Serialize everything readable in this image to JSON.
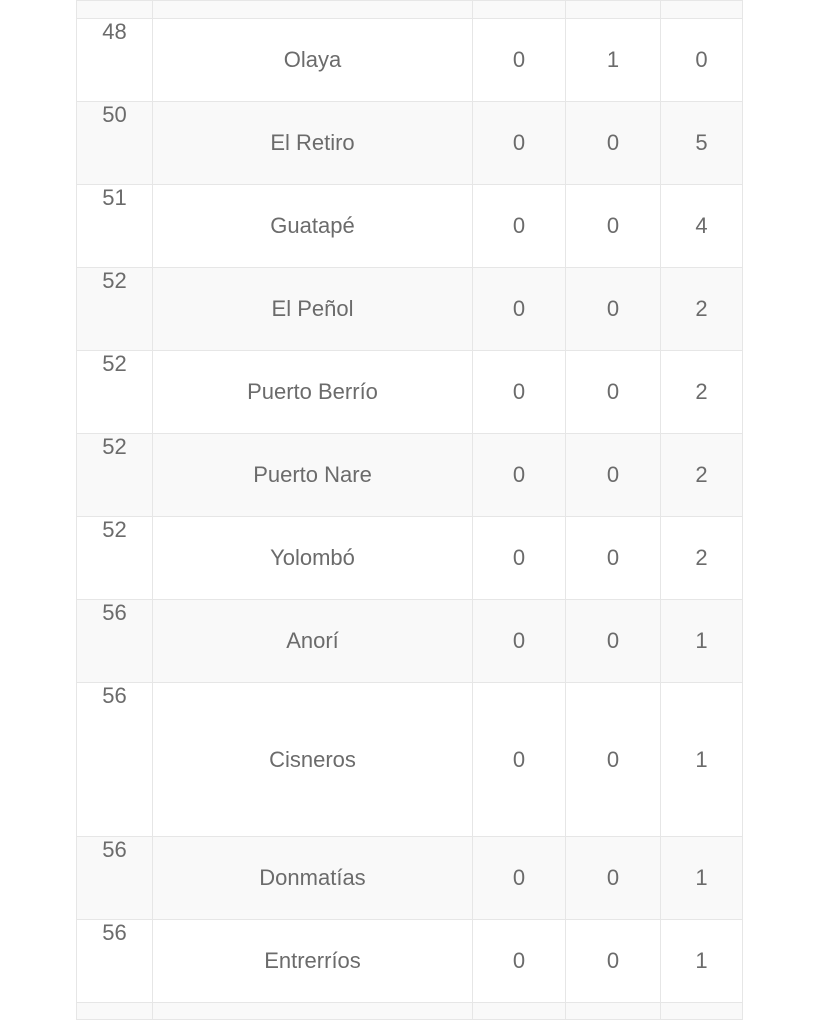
{
  "table": {
    "rows": [
      {
        "rank": "",
        "name": "",
        "values": [
          "",
          "",
          ""
        ],
        "shaded": true,
        "variant": "clipped-top"
      },
      {
        "rank": "48",
        "name": "Olaya",
        "values": [
          "0",
          "1",
          "0"
        ],
        "shaded": false,
        "variant": "normal"
      },
      {
        "rank": "50",
        "name": "El Retiro",
        "values": [
          "0",
          "0",
          "5"
        ],
        "shaded": true,
        "variant": "normal"
      },
      {
        "rank": "51",
        "name": "Guatapé",
        "values": [
          "0",
          "0",
          "4"
        ],
        "shaded": false,
        "variant": "normal"
      },
      {
        "rank": "52",
        "name": "El Peñol",
        "values": [
          "0",
          "0",
          "2"
        ],
        "shaded": true,
        "variant": "normal"
      },
      {
        "rank": "52",
        "name": "Puerto Berrío",
        "values": [
          "0",
          "0",
          "2"
        ],
        "shaded": false,
        "variant": "normal"
      },
      {
        "rank": "52",
        "name": "Puerto Nare",
        "values": [
          "0",
          "0",
          "2"
        ],
        "shaded": true,
        "variant": "normal"
      },
      {
        "rank": "52",
        "name": "Yolombó",
        "values": [
          "0",
          "0",
          "2"
        ],
        "shaded": false,
        "variant": "normal"
      },
      {
        "rank": "56",
        "name": "Anorí",
        "values": [
          "0",
          "0",
          "1"
        ],
        "shaded": true,
        "variant": "normal"
      },
      {
        "rank": "56",
        "name": "Cisneros",
        "values": [
          "0",
          "0",
          "1"
        ],
        "shaded": false,
        "variant": "tall"
      },
      {
        "rank": "56",
        "name": "Donmatías",
        "values": [
          "0",
          "0",
          "1"
        ],
        "shaded": true,
        "variant": "normal"
      },
      {
        "rank": "56",
        "name": "Entrerríos",
        "values": [
          "0",
          "0",
          "1"
        ],
        "shaded": false,
        "variant": "normal"
      },
      {
        "rank": "",
        "name": "",
        "values": [
          "",
          "",
          ""
        ],
        "shaded": true,
        "variant": "clipped-bottom"
      }
    ]
  },
  "colors": {
    "row_shaded": "#f9f9f9",
    "row_plain": "#ffffff",
    "border": "#e6e6e6",
    "text": "#6b6b6b"
  }
}
